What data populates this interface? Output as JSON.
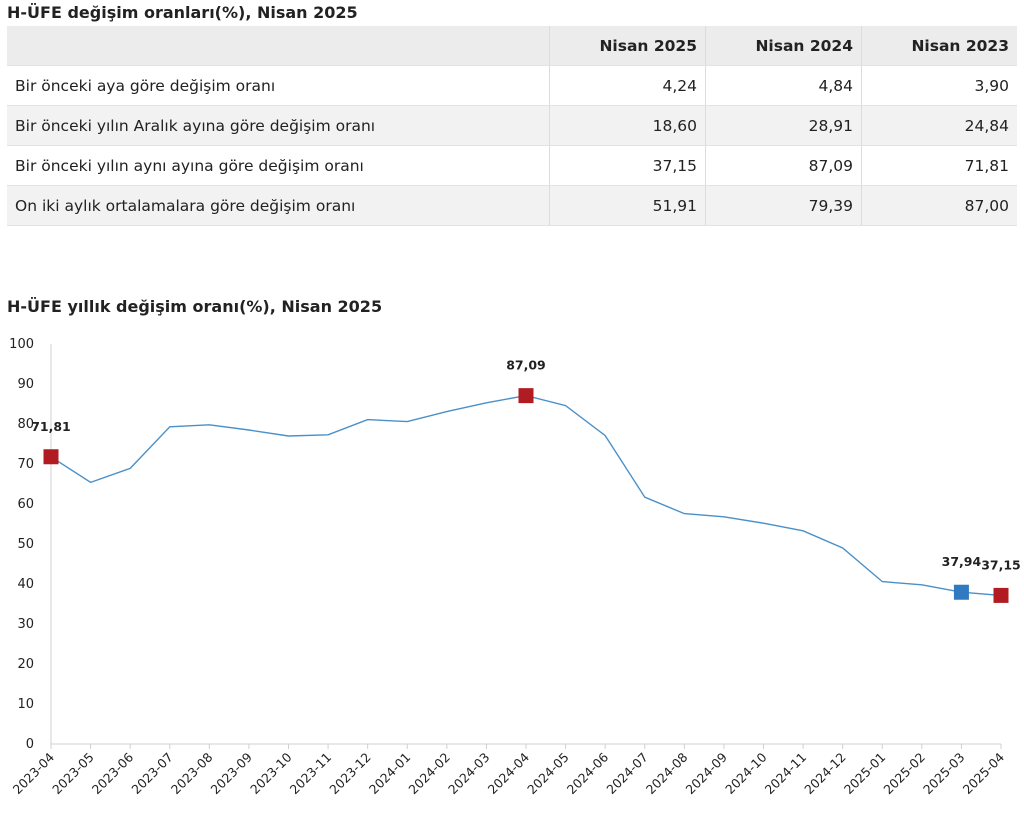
{
  "table": {
    "title": "H-ÜFE değişim oranları(%), Nisan 2025",
    "headers": [
      "",
      "Nisan 2025",
      "Nisan 2024",
      "Nisan 2023"
    ],
    "rows": [
      {
        "label": "Bir önceki aya göre değişim oranı",
        "values": [
          "4,24",
          "4,84",
          "3,90"
        ]
      },
      {
        "label": "Bir önceki yılın Aralık ayına göre değişim oranı",
        "values": [
          "18,60",
          "28,91",
          "24,84"
        ]
      },
      {
        "label": "Bir önceki yılın aynı ayına göre değişim oranı",
        "values": [
          "37,15",
          "87,09",
          "71,81"
        ]
      },
      {
        "label": "On iki aylık ortalamalara göre değişim oranı",
        "values": [
          "51,91",
          "79,39",
          "87,00"
        ]
      }
    ]
  },
  "chart_data": {
    "type": "line",
    "title": "H-ÜFE yıllık değişim oranı(%), Nisan 2025",
    "xlabel": "",
    "ylabel": "",
    "ylim": [
      0,
      100
    ],
    "yticks": [
      0,
      10,
      20,
      30,
      40,
      50,
      60,
      70,
      80,
      90,
      100
    ],
    "grid": false,
    "legend": "none",
    "x": [
      "2023-04",
      "2023-05",
      "2023-06",
      "2023-07",
      "2023-08",
      "2023-09",
      "2023-10",
      "2023-11",
      "2023-12",
      "2024-01",
      "2024-02",
      "2024-03",
      "2024-04",
      "2024-05",
      "2024-06",
      "2024-07",
      "2024-08",
      "2024-09",
      "2024-10",
      "2024-11",
      "2024-12",
      "2025-01",
      "2025-02",
      "2025-03",
      "2025-04"
    ],
    "series": [
      {
        "values": [
          71.81,
          65.4,
          68.9,
          79.3,
          79.8,
          78.5,
          77.0,
          77.3,
          81.1,
          80.6,
          83.1,
          85.3,
          87.09,
          84.6,
          77.1,
          61.7,
          57.6,
          56.8,
          55.2,
          53.3,
          49.0,
          40.6,
          39.8,
          37.94,
          37.15
        ],
        "color": "#4a90c8"
      }
    ],
    "annotations": [
      {
        "x": "2023-04",
        "value": 71.81,
        "label": "71,81",
        "color": "#b01c22"
      },
      {
        "x": "2024-04",
        "value": 87.09,
        "label": "87,09",
        "color": "#b01c22"
      },
      {
        "x": "2025-03",
        "value": 37.94,
        "label": "37,94",
        "color": "#2f7ac0"
      },
      {
        "x": "2025-04",
        "value": 37.15,
        "label": "37,15",
        "color": "#b01c22"
      }
    ]
  }
}
